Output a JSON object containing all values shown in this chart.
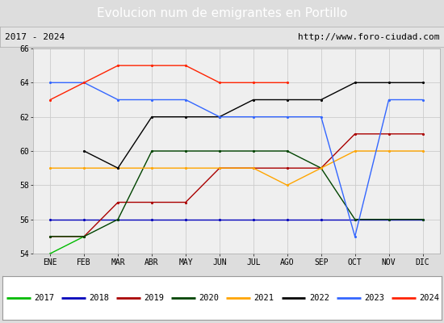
{
  "title": "Evolucion num de emigrantes en Portillo",
  "subtitle_left": "2017 - 2024",
  "subtitle_right": "http://www.foro-ciudad.com",
  "months": [
    "ENE",
    "FEB",
    "MAR",
    "ABR",
    "MAY",
    "JUN",
    "JUL",
    "AGO",
    "SEP",
    "OCT",
    "NOV",
    "DIC"
  ],
  "ylim": [
    54,
    66
  ],
  "yticks": [
    54,
    56,
    58,
    60,
    62,
    64,
    66
  ],
  "series": {
    "2017": {
      "color": "#00bb00",
      "values": [
        54,
        55,
        null,
        null,
        null,
        null,
        null,
        null,
        null,
        null,
        null,
        null
      ]
    },
    "2018": {
      "color": "#0000bb",
      "values": [
        56,
        56,
        56,
        56,
        56,
        56,
        56,
        56,
        56,
        56,
        56,
        56
      ]
    },
    "2019": {
      "color": "#aa0000",
      "values": [
        55,
        55,
        57,
        57,
        57,
        59,
        59,
        59,
        59,
        61,
        61,
        61
      ]
    },
    "2020": {
      "color": "#004400",
      "values": [
        55,
        55,
        56,
        60,
        60,
        60,
        60,
        60,
        59,
        56,
        56,
        56
      ]
    },
    "2021": {
      "color": "#ffa500",
      "values": [
        59,
        59,
        59,
        59,
        59,
        59,
        59,
        58,
        59,
        60,
        60,
        60
      ]
    },
    "2022": {
      "color": "#000000",
      "values": [
        null,
        60,
        59,
        62,
        62,
        62,
        63,
        63,
        63,
        64,
        64,
        64
      ]
    },
    "2023": {
      "color": "#3366ff",
      "values": [
        64,
        64,
        63,
        63,
        63,
        62,
        62,
        62,
        62,
        55,
        63,
        63
      ]
    },
    "2024": {
      "color": "#ff2200",
      "values": [
        63,
        64,
        65,
        65,
        65,
        64,
        64,
        64,
        null,
        null,
        null,
        null
      ]
    }
  },
  "title_bg": "#4499cc",
  "title_color": "#ffffff",
  "plot_bg": "#efefef",
  "grid_color": "#cccccc",
  "subtitle_bg": "#e4e4e4",
  "legend_bg": "#ffffff",
  "legend_border": "#999999",
  "fig_width": 5.5,
  "fig_height": 4.0,
  "fig_dpi": 100,
  "title_fontsize": 11,
  "subtitle_fontsize": 8,
  "tick_fontsize": 7,
  "legend_fontsize": 7.5
}
